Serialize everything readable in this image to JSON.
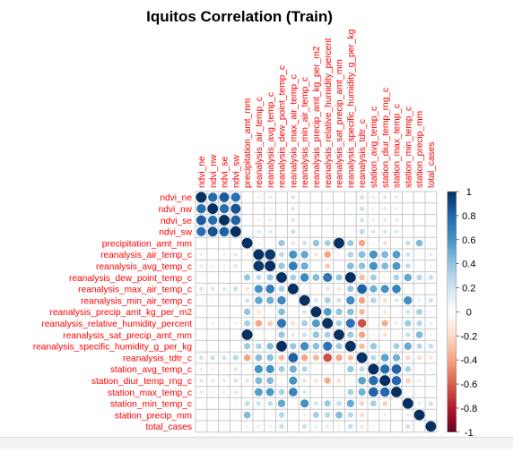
{
  "chart_data": {
    "type": "heatmap",
    "title": "Iquitos Correlation (Train)",
    "variables": [
      "ndvi_ne",
      "ndvi_nw",
      "ndvi_se",
      "ndvi_sw",
      "precipitation_amt_mm",
      "reanalysis_air_temp_c",
      "reanalysis_avg_temp_c",
      "reanalysis_dew_point_temp_c",
      "reanalysis_max_air_temp_c",
      "reanalysis_min_air_temp_c",
      "reanalysis_precip_amt_kg_per_m2",
      "reanalysis_relative_humidity_percent",
      "reanalysis_sat_precip_amt_mm",
      "reanalysis_specific_humidity_g_per_kg",
      "reanalysis_tdtr_c",
      "station_avg_temp_c",
      "station_diur_temp_rng_c",
      "station_max_temp_c",
      "station_min_temp_c",
      "station_precip_mm",
      "total_cases"
    ],
    "matrix": [
      [
        1.0,
        0.77,
        0.84,
        0.76,
        0.02,
        0.1,
        0.12,
        -0.03,
        0.18,
        -0.05,
        0.02,
        -0.07,
        0.02,
        -0.04,
        0.2,
        0.12,
        0.16,
        0.13,
        -0.02,
        0.05,
        0.02
      ],
      [
        0.77,
        1.0,
        0.77,
        0.87,
        0.03,
        0.05,
        0.08,
        -0.06,
        0.17,
        -0.06,
        -0.01,
        -0.1,
        0.03,
        -0.05,
        0.22,
        0.1,
        0.14,
        0.1,
        -0.04,
        0.02,
        -0.01
      ],
      [
        0.84,
        0.77,
        1.0,
        0.82,
        0.02,
        0.1,
        0.11,
        -0.02,
        0.16,
        -0.05,
        0.03,
        -0.06,
        0.02,
        -0.02,
        0.2,
        0.09,
        0.14,
        0.12,
        -0.01,
        0.03,
        -0.04
      ],
      [
        0.76,
        0.87,
        0.82,
        1.0,
        0.03,
        0.14,
        0.15,
        -0.04,
        0.22,
        -0.07,
        0.01,
        -0.1,
        0.03,
        -0.03,
        0.27,
        0.16,
        0.18,
        0.15,
        -0.05,
        0.03,
        0.02
      ],
      [
        0.02,
        0.03,
        0.02,
        0.03,
        1.0,
        -0.09,
        -0.02,
        0.38,
        -0.16,
        0.21,
        0.4,
        0.34,
        1.0,
        0.37,
        -0.4,
        0.08,
        -0.18,
        -0.04,
        0.24,
        0.44,
        0.09
      ],
      [
        0.1,
        0.05,
        0.1,
        0.14,
        -0.09,
        1.0,
        0.97,
        0.26,
        0.6,
        0.52,
        -0.16,
        -0.4,
        -0.09,
        0.31,
        0.43,
        0.6,
        0.45,
        0.56,
        0.21,
        -0.05,
        0.12
      ],
      [
        0.12,
        0.08,
        0.11,
        0.15,
        -0.02,
        0.97,
        1.0,
        0.39,
        0.7,
        0.49,
        -0.04,
        -0.26,
        -0.02,
        0.43,
        0.42,
        0.61,
        0.44,
        0.58,
        0.25,
        0.01,
        0.09
      ],
      [
        -0.03,
        -0.06,
        -0.02,
        -0.04,
        0.38,
        0.26,
        0.39,
        1.0,
        0.34,
        0.64,
        0.43,
        0.73,
        0.38,
        1.0,
        -0.32,
        0.35,
        -0.08,
        0.32,
        0.52,
        0.29,
        0.23
      ],
      [
        0.18,
        0.17,
        0.16,
        0.22,
        -0.16,
        0.6,
        0.7,
        0.34,
        1.0,
        0.06,
        -0.06,
        -0.18,
        -0.16,
        0.38,
        0.82,
        0.49,
        0.6,
        0.67,
        0.04,
        -0.02,
        -0.03
      ],
      [
        -0.05,
        -0.06,
        -0.05,
        -0.07,
        0.21,
        0.52,
        0.49,
        0.64,
        0.06,
        1.0,
        0.19,
        0.34,
        0.21,
        0.63,
        -0.4,
        0.3,
        -0.18,
        0.16,
        0.61,
        0.11,
        0.21
      ],
      [
        0.02,
        -0.01,
        0.03,
        0.01,
        0.4,
        -0.16,
        -0.04,
        0.43,
        -0.06,
        0.19,
        1.0,
        0.57,
        0.4,
        0.42,
        -0.33,
        0.07,
        -0.16,
        -0.02,
        0.2,
        0.34,
        0.11
      ],
      [
        -0.07,
        -0.1,
        -0.06,
        -0.1,
        0.34,
        -0.4,
        -0.26,
        0.73,
        -0.18,
        0.34,
        0.57,
        1.0,
        0.34,
        0.74,
        -0.65,
        -0.08,
        -0.37,
        -0.12,
        0.37,
        0.29,
        0.13
      ],
      [
        0.02,
        0.03,
        0.02,
        0.03,
        1.0,
        -0.09,
        -0.02,
        0.38,
        -0.16,
        0.21,
        0.4,
        0.34,
        1.0,
        0.37,
        -0.4,
        0.08,
        -0.18,
        -0.04,
        0.24,
        0.44,
        0.09
      ],
      [
        -0.04,
        -0.05,
        -0.02,
        -0.03,
        0.37,
        0.31,
        0.43,
        1.0,
        0.38,
        0.63,
        0.42,
        0.74,
        0.37,
        1.0,
        -0.31,
        0.39,
        -0.07,
        0.34,
        0.51,
        0.28,
        0.24
      ],
      [
        0.2,
        0.22,
        0.2,
        0.27,
        -0.4,
        0.43,
        0.42,
        -0.32,
        0.82,
        -0.4,
        -0.33,
        -0.65,
        -0.4,
        -0.31,
        1.0,
        0.27,
        0.54,
        0.48,
        -0.22,
        -0.19,
        -0.15
      ],
      [
        0.12,
        0.1,
        0.09,
        0.16,
        0.08,
        0.6,
        0.61,
        0.35,
        0.49,
        0.3,
        0.07,
        -0.08,
        0.08,
        0.39,
        0.27,
        1.0,
        0.77,
        0.81,
        0.33,
        0.01,
        0.08
      ],
      [
        0.16,
        0.14,
        0.14,
        0.18,
        -0.18,
        0.45,
        0.44,
        -0.08,
        0.6,
        -0.18,
        -0.16,
        -0.37,
        -0.18,
        -0.07,
        0.54,
        0.77,
        1.0,
        0.79,
        -0.24,
        -0.11,
        -0.04
      ],
      [
        0.13,
        0.1,
        0.12,
        0.15,
        -0.04,
        0.56,
        0.58,
        0.32,
        0.67,
        0.16,
        -0.02,
        -0.12,
        -0.04,
        0.34,
        0.48,
        0.81,
        0.79,
        1.0,
        0.02,
        0.0,
        0.04
      ],
      [
        -0.02,
        -0.04,
        -0.01,
        -0.05,
        0.24,
        0.21,
        0.25,
        0.52,
        0.04,
        0.61,
        0.2,
        0.37,
        0.24,
        0.51,
        -0.22,
        0.33,
        -0.24,
        0.02,
        1.0,
        0.12,
        0.21
      ],
      [
        0.05,
        0.02,
        0.03,
        0.03,
        0.44,
        -0.05,
        0.01,
        0.29,
        -0.02,
        0.11,
        0.34,
        0.29,
        0.44,
        0.28,
        -0.19,
        0.01,
        -0.11,
        0.0,
        0.12,
        1.0,
        0.04
      ],
      [
        0.02,
        -0.01,
        -0.04,
        0.02,
        0.09,
        0.12,
        0.09,
        0.23,
        -0.03,
        0.21,
        0.11,
        0.13,
        0.09,
        0.24,
        -0.15,
        0.08,
        -0.04,
        0.04,
        0.21,
        0.04,
        1.0
      ]
    ],
    "legend": {
      "position": "right",
      "ticks": [
        "1",
        "0.8",
        "0.6",
        "0.4",
        "0.2",
        "0",
        "-0.2",
        "-0.4",
        "-0.6",
        "-0.8",
        "-1"
      ]
    },
    "colors": {
      "label": "#ff0000",
      "grid": "#c9c9c9",
      "title": "#000000",
      "scale": [
        "#67001f",
        "#b2182b",
        "#d6604d",
        "#f4a582",
        "#fddbc7",
        "#ffffff",
        "#d1e5f0",
        "#92c5de",
        "#4393c3",
        "#2166ac",
        "#053061"
      ]
    },
    "grid": true
  }
}
